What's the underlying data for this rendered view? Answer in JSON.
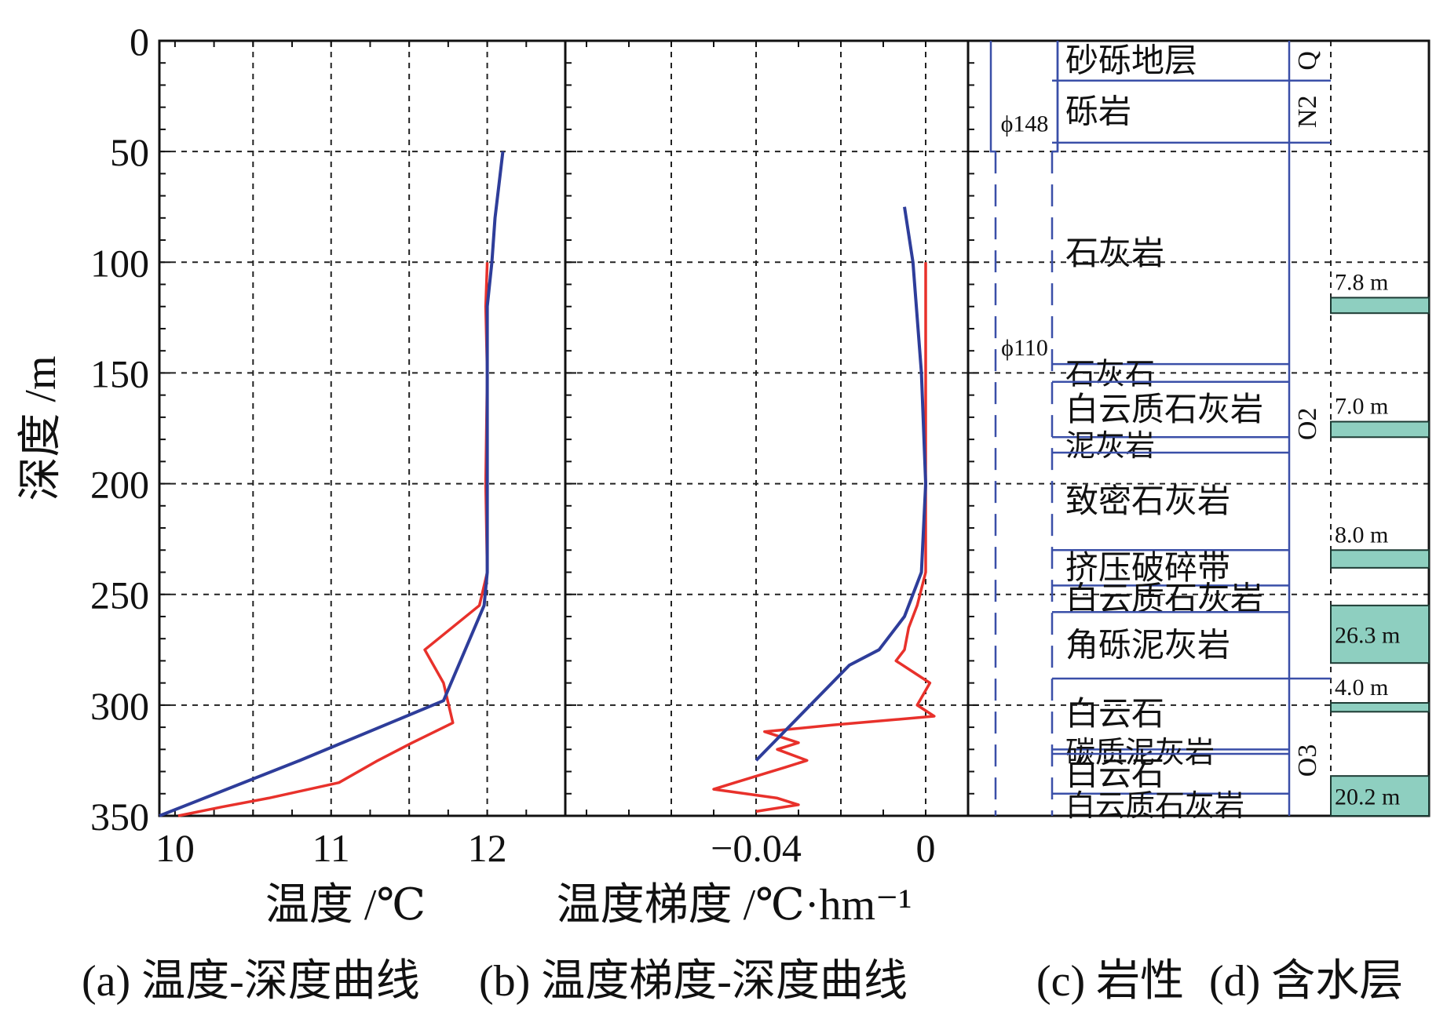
{
  "chart_data": [
    {
      "type": "line",
      "panel": "a",
      "xlabel": "温度 /℃",
      "ylabel": "深度 /m",
      "xlim": [
        9.9,
        12.5
      ],
      "ylim": [
        0,
        350
      ],
      "xticks": [
        10,
        11,
        12
      ],
      "yticks": [
        0,
        50,
        100,
        150,
        200,
        250,
        300,
        350
      ],
      "grid": true,
      "series": [
        {
          "color": "#e8312b",
          "points": [
            [
              12.0,
              100
            ],
            [
              11.99,
              120
            ],
            [
              12.0,
              150
            ],
            [
              11.99,
              200
            ],
            [
              12.0,
              240
            ],
            [
              11.95,
              255
            ],
            [
              11.6,
              275
            ],
            [
              11.72,
              290
            ],
            [
              11.78,
              308
            ],
            [
              11.52,
              317
            ],
            [
              11.3,
              325
            ],
            [
              11.05,
              335
            ],
            [
              10.6,
              342
            ],
            [
              10.3,
              346
            ],
            [
              10.02,
              350
            ]
          ]
        },
        {
          "color": "#2e3d9a",
          "points": [
            [
              12.1,
              50
            ],
            [
              12.05,
              80
            ],
            [
              12.03,
              100
            ],
            [
              12.0,
              120
            ],
            [
              12.0,
              150
            ],
            [
              12.0,
              200
            ],
            [
              12.0,
              240
            ],
            [
              11.98,
              255
            ],
            [
              11.72,
              298
            ],
            [
              10.8,
              325
            ],
            [
              9.9,
              350
            ]
          ]
        }
      ]
    },
    {
      "type": "line",
      "panel": "b",
      "xlabel": "温度梯度 /℃·hm⁻¹",
      "xlim": [
        -0.085,
        0.01
      ],
      "ylim": [
        0,
        350
      ],
      "xticks": [
        -0.04,
        0
      ],
      "xtick_labels": [
        "−0.04",
        "0"
      ],
      "grid": true,
      "series": [
        {
          "color": "#e8312b",
          "points": [
            [
              0.0,
              100
            ],
            [
              0.0,
              115
            ],
            [
              0.0,
              150
            ],
            [
              0.0,
              190
            ],
            [
              0.0,
              240
            ],
            [
              -0.002,
              255
            ],
            [
              -0.004,
              265
            ],
            [
              -0.005,
              275
            ],
            [
              -0.007,
              280
            ],
            [
              -0.003,
              285
            ],
            [
              0.001,
              290
            ],
            [
              -0.002,
              300
            ],
            [
              0.002,
              305
            ],
            [
              -0.022,
              309
            ],
            [
              -0.038,
              312
            ],
            [
              -0.03,
              317
            ],
            [
              -0.035,
              320
            ],
            [
              -0.028,
              325
            ],
            [
              -0.033,
              328
            ],
            [
              -0.045,
              335
            ],
            [
              -0.05,
              338
            ],
            [
              -0.035,
              342
            ],
            [
              -0.03,
              345
            ],
            [
              -0.04,
              348
            ]
          ]
        },
        {
          "color": "#2e3d9a",
          "points": [
            [
              -0.005,
              75
            ],
            [
              -0.003,
              100
            ],
            [
              -0.001,
              150
            ],
            [
              0.0,
              200
            ],
            [
              -0.001,
              240
            ],
            [
              -0.005,
              260
            ],
            [
              -0.011,
              275
            ],
            [
              -0.018,
              282
            ],
            [
              -0.04,
              325
            ]
          ]
        }
      ]
    }
  ],
  "lithology": {
    "casing_upper": "ϕ148",
    "casing_lower": "ϕ110",
    "layers": [
      {
        "name": "砂砾地层",
        "top": 0,
        "bottom": 18
      },
      {
        "name": "砾岩",
        "top": 18,
        "bottom": 46
      },
      {
        "name": "石灰岩",
        "top": 46,
        "bottom": 146
      },
      {
        "name": "石灰石",
        "top": 146,
        "bottom": 154
      },
      {
        "name": "白云质石灰岩",
        "top": 154,
        "bottom": 179
      },
      {
        "name": "泥灰岩",
        "top": 179,
        "bottom": 186
      },
      {
        "name": "致密石灰岩",
        "top": 186,
        "bottom": 230
      },
      {
        "name": "挤压破碎带",
        "top": 230,
        "bottom": 246
      },
      {
        "name": "白云质石灰岩",
        "top": 246,
        "bottom": 258
      },
      {
        "name": "角砾泥灰岩",
        "top": 258,
        "bottom": 288
      },
      {
        "name": "白云石",
        "top": 288,
        "bottom": 320
      },
      {
        "name": "碳质泥灰岩",
        "top": 320,
        "bottom": 322
      },
      {
        "name": "白云石",
        "top": 322,
        "bottom": 340
      },
      {
        "name": "白云质石灰岩",
        "top": 340,
        "bottom": 350
      }
    ],
    "strata": [
      {
        "label": "Q",
        "top": 0,
        "bottom": 18
      },
      {
        "label": "N2",
        "top": 18,
        "bottom": 46
      },
      {
        "label": "O2",
        "top": 46,
        "bottom": 300
      },
      {
        "label": "O3",
        "top": 300,
        "bottom": 350
      }
    ]
  },
  "aquifers": {
    "color": "#8ecfc0",
    "layers": [
      {
        "label": "7.8 m",
        "top": 116,
        "bottom": 123
      },
      {
        "label": "7.0 m",
        "top": 172,
        "bottom": 179
      },
      {
        "label": "8.0 m",
        "top": 230,
        "bottom": 238
      },
      {
        "label": "26.3 m",
        "top": 255,
        "bottom": 281
      },
      {
        "label": "4.0 m",
        "top": 299,
        "bottom": 303
      },
      {
        "label": "20.2 m",
        "top": 332,
        "bottom": 350
      }
    ]
  },
  "captions": {
    "a": "(a) 温度-深度曲线",
    "b": "(b) 温度梯度-深度曲线",
    "c": "(c) 岩性",
    "d": "(d) 含水层"
  }
}
